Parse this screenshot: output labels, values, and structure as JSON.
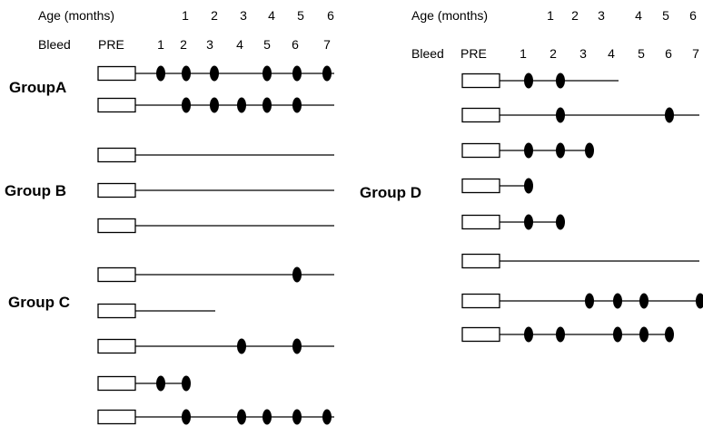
{
  "left_panel": {
    "age_label": "Age (months)",
    "bleed_label": "Bleed",
    "pre_label": "PRE",
    "age_ticks": [
      "1",
      "2",
      "3",
      "4",
      "5",
      "6"
    ],
    "bleed_ticks": [
      "1",
      "2",
      "3",
      "4",
      "5",
      "6",
      "7"
    ],
    "groups": [
      {
        "label": "GroupA",
        "subjects": [
          {
            "last_bleed": 7,
            "positive_bleeds": [
              1,
              2,
              3,
              5,
              6,
              7
            ]
          },
          {
            "last_bleed": 7,
            "positive_bleeds": [
              2,
              3,
              4,
              5,
              6
            ]
          }
        ]
      },
      {
        "label": "Group B",
        "subjects": [
          {
            "last_bleed": 7,
            "positive_bleeds": []
          },
          {
            "last_bleed": 7,
            "positive_bleeds": []
          },
          {
            "last_bleed": 7,
            "positive_bleeds": []
          }
        ]
      },
      {
        "label": "Group C",
        "subjects": [
          {
            "last_bleed": 7,
            "positive_bleeds": [
              6
            ]
          },
          {
            "last_bleed": 3,
            "positive_bleeds": []
          },
          {
            "last_bleed": 7,
            "positive_bleeds": [
              4,
              6
            ]
          },
          {
            "last_bleed": 2,
            "positive_bleeds": [
              1,
              2
            ]
          },
          {
            "last_bleed": 7,
            "positive_bleeds": [
              2,
              4,
              5,
              6,
              7
            ]
          }
        ]
      }
    ]
  },
  "right_panel": {
    "age_label": "Age (months)",
    "bleed_label": "Bleed",
    "pre_label": "PRE",
    "age_ticks": [
      "1",
      "2",
      "3",
      "4",
      "5",
      "6"
    ],
    "bleed_ticks": [
      "1",
      "2",
      "3",
      "4",
      "5",
      "6",
      "7"
    ],
    "groups": [
      {
        "label": "Group D",
        "subjects": [
          {
            "last_bleed": 4,
            "positive_bleeds": [
              1,
              2
            ]
          },
          {
            "last_bleed": 7,
            "positive_bleeds": [
              2,
              6
            ]
          },
          {
            "last_bleed": 3,
            "positive_bleeds": [
              1,
              2,
              3
            ]
          },
          {
            "last_bleed": 1,
            "positive_bleeds": [
              1
            ]
          },
          {
            "last_bleed": 2,
            "positive_bleeds": [
              1,
              2
            ]
          },
          {
            "last_bleed": 7,
            "positive_bleeds": []
          },
          {
            "last_bleed": 7,
            "positive_bleeds": [
              3,
              4,
              5,
              7
            ]
          },
          {
            "last_bleed": 6,
            "positive_bleeds": [
              1,
              2,
              4,
              5,
              6
            ]
          }
        ]
      }
    ]
  },
  "colors": {
    "line": "#000000",
    "marker": "#000000",
    "box_fill": "#ffffff"
  }
}
